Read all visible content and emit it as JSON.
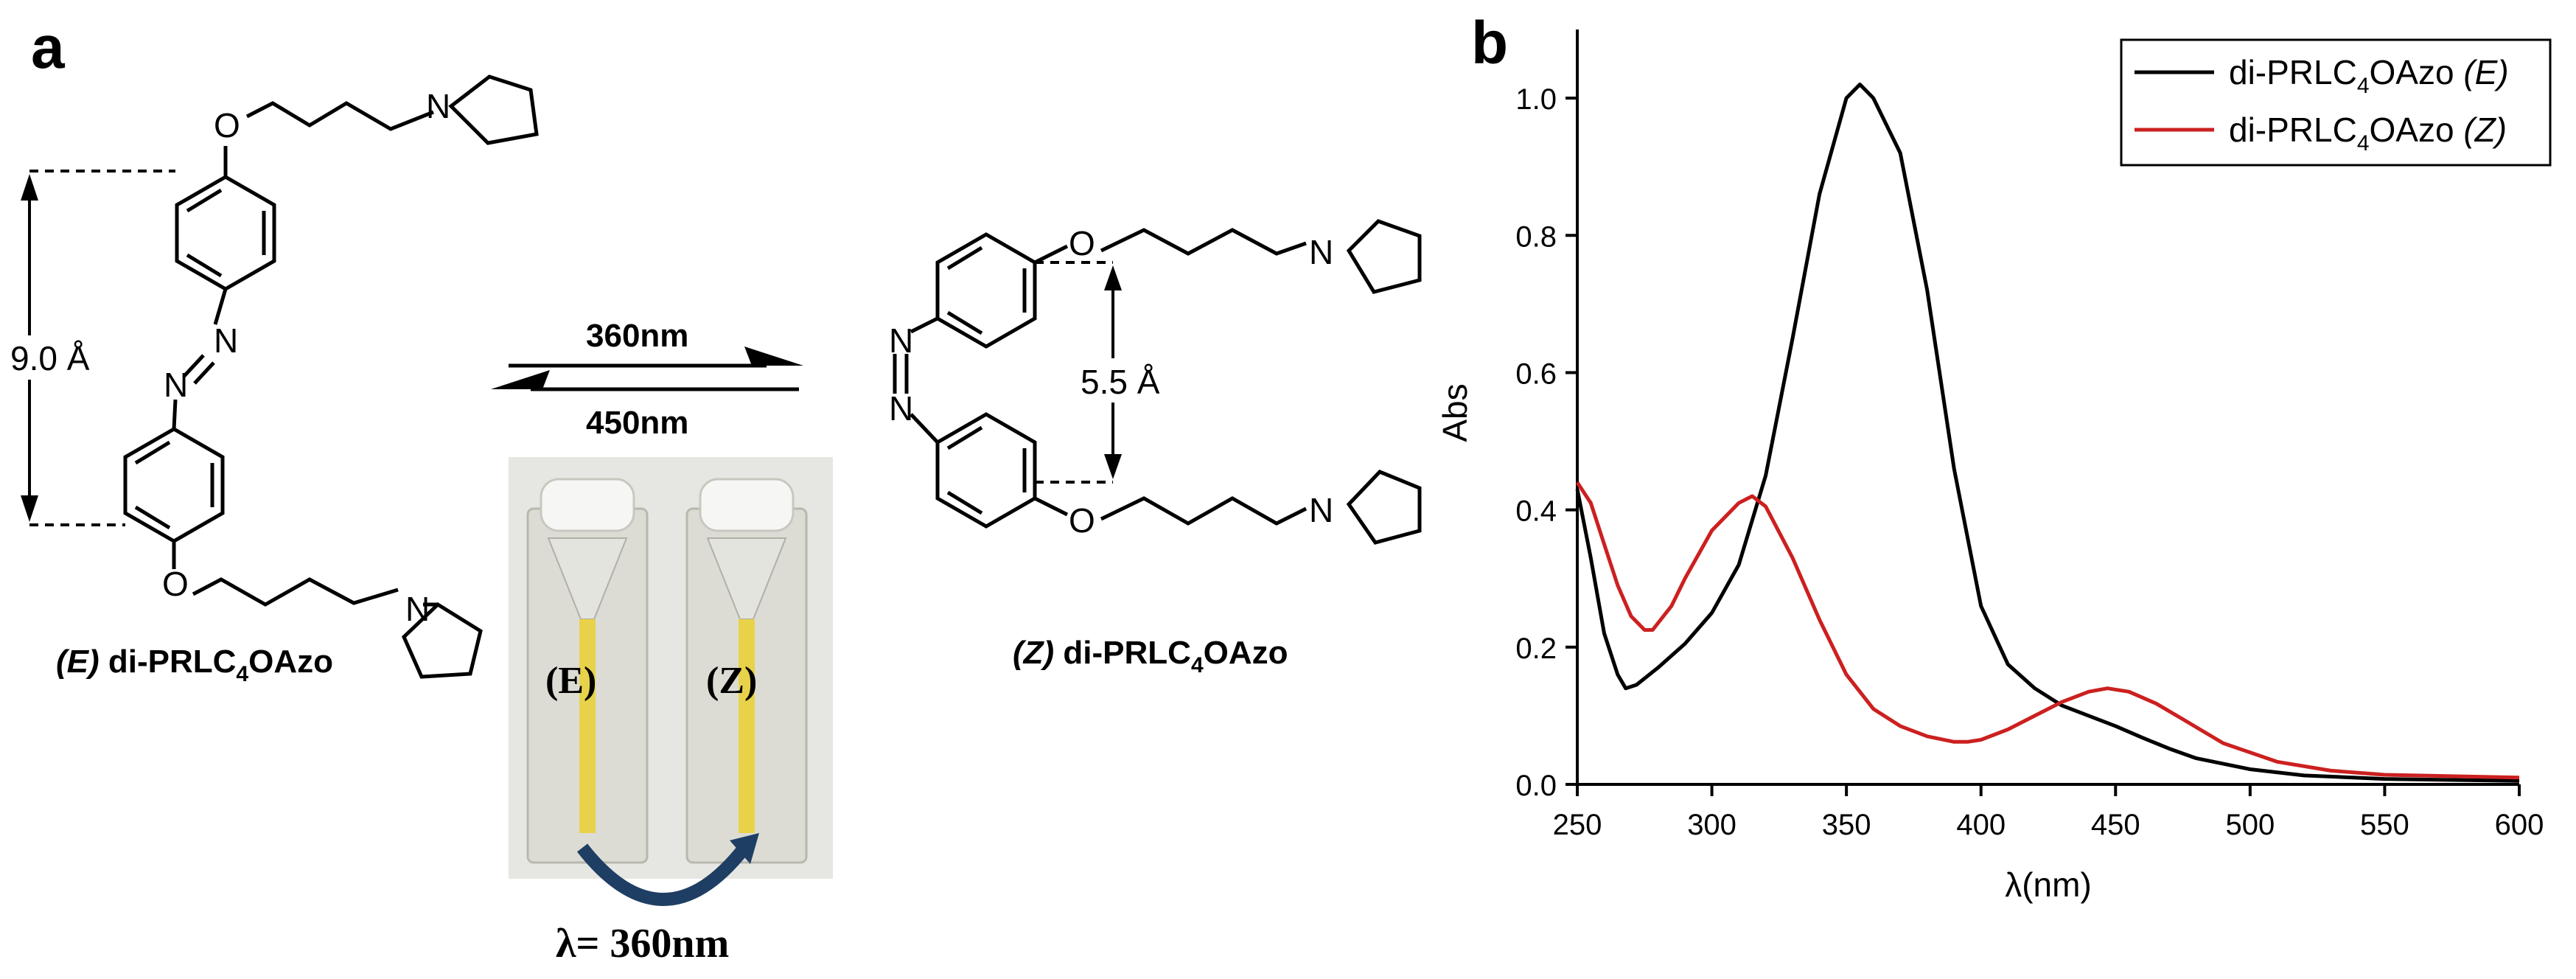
{
  "panel_a": {
    "label": "a",
    "e_distance": "9.0 Å",
    "z_distance": "5.5 Å",
    "forward_wavelength": "360nm",
    "reverse_wavelength": "450nm",
    "e_name": {
      "prefix": "(E)",
      "main": "di-PRLC",
      "sub": "4",
      "suffix": "OAzo"
    },
    "z_name": {
      "prefix": "(Z)",
      "main": "di-PRLC",
      "sub": "4",
      "suffix": "OAzo"
    },
    "atom_O": "O",
    "atom_N": "N",
    "cuvette_e": "(E)",
    "cuvette_z": "(Z)",
    "irradiation": "λ= 360nm",
    "colors": {
      "sample_yellow": "#e8d24a",
      "arrow_blue": "#1f3e63"
    }
  },
  "panel_b": {
    "label": "b"
  },
  "chart_data": {
    "type": "line",
    "title": "",
    "xlabel": "λ(nm)",
    "ylabel": "Abs",
    "xlim": [
      250,
      600
    ],
    "ylim": [
      0,
      1.1
    ],
    "xticks": [
      "250",
      "300",
      "350",
      "400",
      "450",
      "500",
      "550",
      "600"
    ],
    "yticks": [
      "0.0",
      "0.2",
      "0.4",
      "0.6",
      "0.8",
      "1.0"
    ],
    "legend_position": "top-right",
    "grid": false,
    "series": [
      {
        "name": "di-PRLC4OAzo (E)",
        "legend": {
          "main": "di-PRLC",
          "sub": "4",
          "suffix": "OAzo ",
          "tag": "(E)"
        },
        "color": "#000000",
        "x": [
          250,
          255,
          260,
          265,
          268,
          272,
          280,
          290,
          300,
          310,
          320,
          330,
          340,
          350,
          355,
          360,
          365,
          370,
          380,
          390,
          400,
          410,
          420,
          430,
          440,
          450,
          460,
          470,
          480,
          500,
          520,
          550,
          600
        ],
        "y": [
          0.43,
          0.33,
          0.22,
          0.16,
          0.14,
          0.145,
          0.17,
          0.205,
          0.25,
          0.32,
          0.45,
          0.65,
          0.86,
          1.0,
          1.02,
          1.0,
          0.96,
          0.92,
          0.72,
          0.46,
          0.26,
          0.175,
          0.14,
          0.115,
          0.1,
          0.085,
          0.068,
          0.052,
          0.038,
          0.022,
          0.013,
          0.008,
          0.005
        ]
      },
      {
        "name": "di-PRLC4OAzo (Z)",
        "legend": {
          "main": "di-PRLC",
          "sub": "4",
          "suffix": "OAzo ",
          "tag": "(Z)"
        },
        "color": "#cc2020",
        "x": [
          250,
          255,
          260,
          265,
          270,
          275,
          278,
          285,
          290,
          300,
          310,
          315,
          320,
          330,
          340,
          350,
          360,
          370,
          380,
          390,
          395,
          400,
          410,
          420,
          430,
          440,
          447,
          455,
          465,
          475,
          490,
          510,
          530,
          550,
          600
        ],
        "y": [
          0.44,
          0.41,
          0.35,
          0.29,
          0.245,
          0.225,
          0.225,
          0.26,
          0.3,
          0.37,
          0.41,
          0.42,
          0.405,
          0.33,
          0.24,
          0.16,
          0.11,
          0.085,
          0.07,
          0.062,
          0.062,
          0.065,
          0.08,
          0.1,
          0.12,
          0.135,
          0.14,
          0.135,
          0.118,
          0.095,
          0.06,
          0.033,
          0.02,
          0.014,
          0.01
        ]
      }
    ]
  }
}
